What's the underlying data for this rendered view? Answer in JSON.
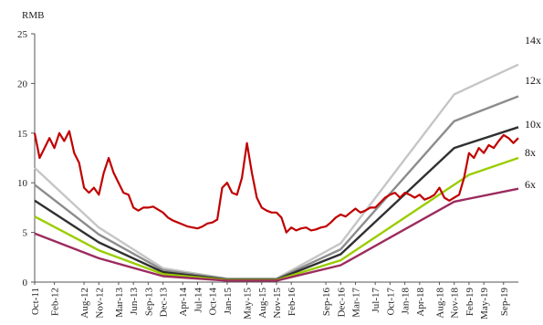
{
  "chart_data": {
    "type": "line",
    "ylabel": "RMB",
    "ylim": [
      0,
      25
    ],
    "yticks": [
      0,
      5,
      10,
      15,
      20,
      25
    ],
    "grid": false,
    "x_start": "Oct-11",
    "x_end": "Dec-19",
    "x_tick_labels": [
      "Oct-11",
      "Feb-12",
      "Aug-12",
      "Nov-12",
      "Mar-13",
      "Jun-13",
      "Sep-13",
      "Dec-13",
      "Apr-14",
      "Jul-14",
      "Oct-14",
      "Jan-15",
      "May-15",
      "Aug-15",
      "Nov-15",
      "Feb-16",
      "Sep-16",
      "Dec-16",
      "Mar-17",
      "Jul-17",
      "Oct-17",
      "Jan-18",
      "Apr-18",
      "Aug-18",
      "Nov-18",
      "Feb-19",
      "May-19",
      "Sep-19"
    ],
    "price_series": {
      "color": "#c00000",
      "points": [
        [
          "Oct-11",
          15.0
        ],
        [
          "Nov-11",
          12.5
        ],
        [
          "Dec-11",
          13.5
        ],
        [
          "Jan-12",
          14.5
        ],
        [
          "Feb-12",
          13.5
        ],
        [
          "Mar-12",
          15.0
        ],
        [
          "Apr-12",
          14.2
        ],
        [
          "May-12",
          15.2
        ],
        [
          "Jun-12",
          13.0
        ],
        [
          "Jul-12",
          12.0
        ],
        [
          "Aug-12",
          9.5
        ],
        [
          "Sep-12",
          9.0
        ],
        [
          "Oct-12",
          9.5
        ],
        [
          "Nov-12",
          8.8
        ],
        [
          "Dec-12",
          11.0
        ],
        [
          "Jan-13",
          12.5
        ],
        [
          "Feb-13",
          11.0
        ],
        [
          "Mar-13",
          10.0
        ],
        [
          "Apr-13",
          9.0
        ],
        [
          "May-13",
          8.8
        ],
        [
          "Jun-13",
          7.5
        ],
        [
          "Jul-13",
          7.2
        ],
        [
          "Aug-13",
          7.5
        ],
        [
          "Sep-13",
          7.5
        ],
        [
          "Oct-13",
          7.6
        ],
        [
          "Nov-13",
          7.3
        ],
        [
          "Dec-13",
          7.0
        ],
        [
          "Jan-14",
          6.5
        ],
        [
          "Feb-14",
          6.2
        ],
        [
          "Mar-14",
          6.0
        ],
        [
          "Apr-14",
          5.8
        ],
        [
          "May-14",
          5.6
        ],
        [
          "Jun-14",
          5.5
        ],
        [
          "Jul-14",
          5.4
        ],
        [
          "Aug-14",
          5.6
        ],
        [
          "Sep-14",
          5.9
        ],
        [
          "Oct-14",
          6.0
        ],
        [
          "Nov-14",
          6.3
        ],
        [
          "Dec-14",
          9.5
        ],
        [
          "Jan-15",
          10.0
        ],
        [
          "Feb-15",
          9.0
        ],
        [
          "Mar-15",
          8.8
        ],
        [
          "Apr-15",
          10.5
        ],
        [
          "May-15",
          14.0
        ],
        [
          "Jun-15",
          11.0
        ],
        [
          "Jul-15",
          8.5
        ],
        [
          "Aug-15",
          7.5
        ],
        [
          "Sep-15",
          7.2
        ],
        [
          "Oct-15",
          7.0
        ],
        [
          "Nov-15",
          7.0
        ],
        [
          "Dec-15",
          6.5
        ],
        [
          "Jan-16",
          5.0
        ],
        [
          "Feb-16",
          5.5
        ],
        [
          "Mar-16",
          5.2
        ],
        [
          "Apr-16",
          5.4
        ],
        [
          "May-16",
          5.5
        ],
        [
          "Jun-16",
          5.2
        ],
        [
          "Jul-16",
          5.3
        ],
        [
          "Aug-16",
          5.5
        ],
        [
          "Sep-16",
          5.6
        ],
        [
          "Oct-16",
          6.0
        ],
        [
          "Nov-16",
          6.5
        ],
        [
          "Dec-16",
          6.8
        ],
        [
          "Jan-17",
          6.6
        ],
        [
          "Feb-17",
          7.0
        ],
        [
          "Mar-17",
          7.4
        ],
        [
          "Apr-17",
          7.0
        ],
        [
          "May-17",
          7.2
        ],
        [
          "Jun-17",
          7.5
        ],
        [
          "Jul-17",
          7.5
        ],
        [
          "Aug-17",
          8.0
        ],
        [
          "Sep-17",
          8.5
        ],
        [
          "Oct-17",
          8.8
        ],
        [
          "Nov-17",
          9.0
        ],
        [
          "Dec-17",
          8.5
        ],
        [
          "Jan-18",
          9.0
        ],
        [
          "Feb-18",
          8.8
        ],
        [
          "Mar-18",
          8.5
        ],
        [
          "Apr-18",
          8.8
        ],
        [
          "May-18",
          8.3
        ],
        [
          "Jun-18",
          8.5
        ],
        [
          "Jul-18",
          8.8
        ],
        [
          "Aug-18",
          9.5
        ],
        [
          "Sep-18",
          8.5
        ],
        [
          "Oct-18",
          8.2
        ],
        [
          "Nov-18",
          8.5
        ],
        [
          "Dec-18",
          8.8
        ],
        [
          "Jan-19",
          10.5
        ],
        [
          "Feb-19",
          13.0
        ],
        [
          "Mar-19",
          12.5
        ],
        [
          "Apr-19",
          13.5
        ],
        [
          "May-19",
          13.0
        ],
        [
          "Jun-19",
          13.8
        ],
        [
          "Jul-19",
          13.5
        ],
        [
          "Aug-19",
          14.2
        ],
        [
          "Sep-19",
          14.8
        ],
        [
          "Oct-19",
          14.5
        ],
        [
          "Nov-19",
          14.0
        ],
        [
          "Dec-19",
          14.5
        ]
      ]
    },
    "band_series": [
      {
        "name": "14x",
        "color": "#c6c6c6",
        "points": [
          [
            "Oct-11",
            11.5
          ],
          [
            "Nov-12",
            5.5
          ],
          [
            "Dec-13",
            1.4
          ],
          [
            "Jan-15",
            0.35
          ],
          [
            "Nov-15",
            0.35
          ],
          [
            "Dec-16",
            3.9
          ],
          [
            "Nov-18",
            18.9
          ],
          [
            "Dec-19",
            21.9
          ]
        ]
      },
      {
        "name": "12x",
        "color": "#8c8c8c",
        "points": [
          [
            "Oct-11",
            9.8
          ],
          [
            "Nov-12",
            4.8
          ],
          [
            "Dec-13",
            1.2
          ],
          [
            "Jan-15",
            0.3
          ],
          [
            "Nov-15",
            0.3
          ],
          [
            "Dec-16",
            3.3
          ],
          [
            "Nov-18",
            16.2
          ],
          [
            "Dec-19",
            18.7
          ]
        ]
      },
      {
        "name": "10x",
        "color": "#303030",
        "points": [
          [
            "Oct-11",
            8.2
          ],
          [
            "Nov-12",
            4.0
          ],
          [
            "Dec-13",
            1.0
          ],
          [
            "Jan-15",
            0.25
          ],
          [
            "Nov-15",
            0.25
          ],
          [
            "Dec-16",
            2.8
          ],
          [
            "Nov-18",
            13.5
          ],
          [
            "Dec-19",
            15.6
          ]
        ]
      },
      {
        "name": "8x",
        "color": "#9acd00",
        "points": [
          [
            "Oct-11",
            6.6
          ],
          [
            "Nov-12",
            3.2
          ],
          [
            "Dec-13",
            0.8
          ],
          [
            "Jan-15",
            0.2
          ],
          [
            "Nov-15",
            0.2
          ],
          [
            "Dec-16",
            2.2
          ],
          [
            "Feb-19",
            10.8
          ],
          [
            "Dec-19",
            12.5
          ]
        ]
      },
      {
        "name": "6x",
        "color": "#9b2c5e",
        "points": [
          [
            "Oct-11",
            4.9
          ],
          [
            "Nov-12",
            2.4
          ],
          [
            "Dec-13",
            0.6
          ],
          [
            "Jan-15",
            0.15
          ],
          [
            "Nov-15",
            0.15
          ],
          [
            "Dec-16",
            1.7
          ],
          [
            "Nov-18",
            8.1
          ],
          [
            "Dec-19",
            9.4
          ]
        ]
      }
    ]
  }
}
